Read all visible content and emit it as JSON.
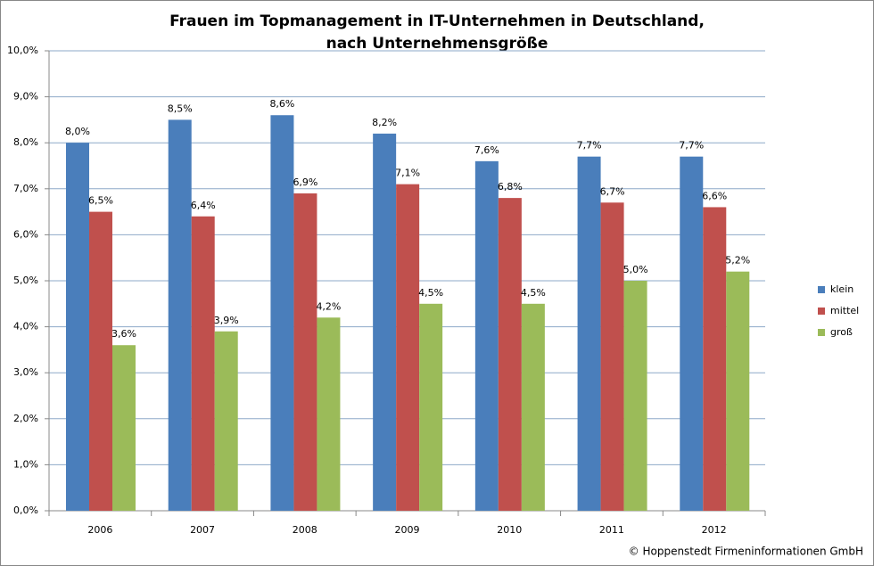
{
  "chart_data": {
    "type": "bar",
    "title": "Frauen im Topmanagement  in IT-Unternehmen in Deutschland,  nach Unternehmensgröße",
    "source": "© Hoppenstedt Firmeninformationen GmbH",
    "categories": [
      "2006",
      "2007",
      "2008",
      "2009",
      "2010",
      "2011",
      "2012"
    ],
    "series": [
      {
        "name": "klein",
        "color": "#4a7ebb",
        "values": [
          8.0,
          8.5,
          8.6,
          8.2,
          7.6,
          7.7,
          7.7
        ],
        "value_labels": [
          "8,0%",
          "8,5%",
          "8,6%",
          "8,2%",
          "7,6%",
          "7,7%",
          "7,7%"
        ]
      },
      {
        "name": "mittel",
        "color": "#c0504d",
        "values": [
          6.5,
          6.4,
          6.9,
          7.1,
          6.8,
          6.7,
          6.6
        ],
        "value_labels": [
          "6,5%",
          "6,4%",
          "6,9%",
          "7,1%",
          "6,8%",
          "6,7%",
          "6,6%"
        ]
      },
      {
        "name": "groß",
        "color": "#9bbb59",
        "values": [
          3.6,
          3.9,
          4.2,
          4.5,
          4.5,
          5.0,
          5.2
        ],
        "value_labels": [
          "3,6%",
          "3,9%",
          "4,2%",
          "4,5%",
          "4,5%",
          "5,0%",
          "5,2%"
        ]
      }
    ],
    "ylim": [
      0,
      10
    ],
    "yticks": [
      {
        "value": 0,
        "label": "0,0%"
      },
      {
        "value": 1,
        "label": "1,0%"
      },
      {
        "value": 2,
        "label": "2,0%"
      },
      {
        "value": 3,
        "label": "3,0%"
      },
      {
        "value": 4,
        "label": "4,0%"
      },
      {
        "value": 5,
        "label": "5,0%"
      },
      {
        "value": 6,
        "label": "6,0%"
      },
      {
        "value": 7,
        "label": "7,0%"
      },
      {
        "value": 8,
        "label": "8,0%"
      },
      {
        "value": 9,
        "label": "9,0%"
      },
      {
        "value": 10,
        "label": "10,0%"
      }
    ],
    "grid": true,
    "legend": "right"
  }
}
